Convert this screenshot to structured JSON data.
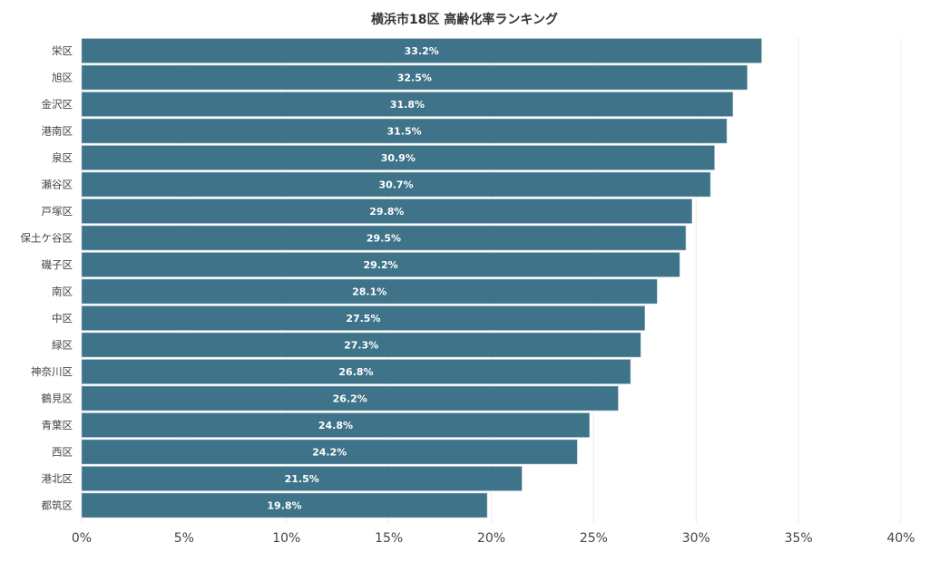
{
  "chart_data": {
    "type": "bar",
    "orientation": "horizontal",
    "title": "横浜市18区 高齢化率ランキング",
    "xlabel": "",
    "ylabel": "",
    "xlim": [
      0,
      40
    ],
    "x_ticks": [
      "0%",
      "5%",
      "10%",
      "15%",
      "20%",
      "25%",
      "30%",
      "35%",
      "40%"
    ],
    "grid": true,
    "bar_color": "#3e7389",
    "categories": [
      "栄区",
      "旭区",
      "金沢区",
      "港南区",
      "泉区",
      "瀬谷区",
      "戸塚区",
      "保土ケ谷区",
      "磯子区",
      "南区",
      "中区",
      "緑区",
      "神奈川区",
      "鶴見区",
      "青葉区",
      "西区",
      "港北区",
      "都筑区"
    ],
    "values": [
      33.2,
      32.5,
      31.8,
      31.5,
      30.9,
      30.7,
      29.8,
      29.5,
      29.2,
      28.1,
      27.5,
      27.3,
      26.8,
      26.2,
      24.8,
      24.2,
      21.5,
      19.8
    ],
    "data_labels": [
      "33.2%",
      "32.5%",
      "31.8%",
      "31.5%",
      "30.9%",
      "30.7%",
      "29.8%",
      "29.5%",
      "29.2%",
      "28.1%",
      "27.5%",
      "27.3%",
      "26.8%",
      "26.2%",
      "24.8%",
      "24.2%",
      "21.5%",
      "19.8%"
    ]
  }
}
